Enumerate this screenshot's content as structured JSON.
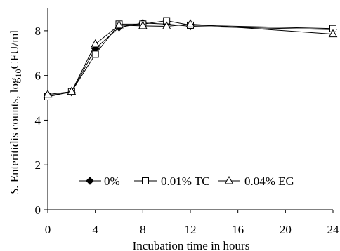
{
  "chart_data": {
    "type": "line",
    "xlabel": "Incubation time in hours",
    "ylabel_italic": "S",
    "ylabel_rest": ". Enteritidis counts, log",
    "ylabel_sub": "10",
    "ylabel_unit": "CFU/ml",
    "xlim": [
      0,
      24
    ],
    "ylim": [
      0,
      9
    ],
    "x_ticks": [
      0,
      4,
      8,
      12,
      16,
      20,
      24
    ],
    "y_ticks": [
      0,
      2,
      4,
      6,
      8
    ],
    "grid": false,
    "legend_position": "bottom-center",
    "series": [
      {
        "name": "0%",
        "marker": "diamond-filled",
        "color": "#000000",
        "x": [
          0,
          2,
          4,
          6,
          8,
          10,
          12,
          24
        ],
        "y": [
          5.1,
          5.25,
          7.2,
          8.15,
          8.35,
          8.3,
          8.2,
          8.05
        ]
      },
      {
        "name": "0.01% TC",
        "marker": "square-open",
        "color": "#000000",
        "x": [
          0,
          2,
          4,
          6,
          8,
          10,
          12,
          24
        ],
        "y": [
          5.05,
          5.28,
          6.95,
          8.3,
          8.3,
          8.45,
          8.25,
          8.1
        ]
      },
      {
        "name": "0.04% EG",
        "marker": "triangle-open",
        "color": "#000000",
        "x": [
          0,
          2,
          4,
          6,
          8,
          10,
          12,
          24
        ],
        "y": [
          5.15,
          5.28,
          7.4,
          8.25,
          8.22,
          8.2,
          8.3,
          7.85
        ]
      }
    ]
  }
}
